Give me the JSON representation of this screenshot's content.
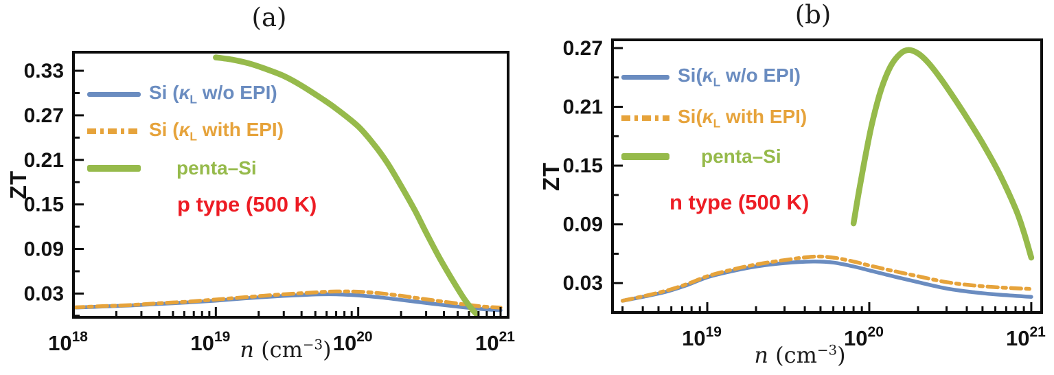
{
  "chart_data": [
    {
      "id": "a",
      "type": "line",
      "title": "(a)",
      "ylabel": "ZT",
      "xlabel": {
        "var": "n",
        "pre": " (cm",
        "sup": "−3",
        "post": ")"
      },
      "xscale": "log",
      "xlim_log10": [
        18,
        21.053
      ],
      "ylim": [
        -0.002,
        0.355
      ],
      "xticks_log10": [
        18,
        19,
        20,
        21
      ],
      "yticks": [
        0.03,
        0.09,
        0.15,
        0.21,
        0.27,
        0.33
      ],
      "ytick_minor": [
        0.0,
        0.06,
        0.12,
        0.18,
        0.24,
        0.3
      ],
      "grid": false,
      "legend_position": "upper-left-inside",
      "annotation": {
        "text": "p type (500 K)",
        "color": "#ed1c24"
      },
      "legend": [
        {
          "pre": "Si (",
          "kappa": "κ",
          "sub": "L",
          "post": " w/o EPI)",
          "color": "#6a8cc0",
          "line": "solid"
        },
        {
          "pre": "Si (",
          "kappa": "κ",
          "sub": "L",
          "post": " with EPI)",
          "color": "#e6a33b",
          "line": "dash-dot"
        },
        {
          "label": "penta–Si",
          "color": "#96ba4b",
          "line": "thick-solid"
        }
      ],
      "series": [
        {
          "name": "Si (kappa_L w/o EPI)",
          "color": "#6a8cc0",
          "style": "solid",
          "width": 5.5,
          "points": [
            [
              1e+18,
              0.011
            ],
            [
              1.6e+18,
              0.0125
            ],
            [
              2.5e+18,
              0.014
            ],
            [
              4e+18,
              0.016
            ],
            [
              6.3e+18,
              0.018
            ],
            [
              1e+19,
              0.0205
            ],
            [
              1.6e+19,
              0.0235
            ],
            [
              2.5e+19,
              0.026
            ],
            [
              4e+19,
              0.028
            ],
            [
              5.5e+19,
              0.029
            ],
            [
              7e+19,
              0.029
            ],
            [
              1e+20,
              0.0275
            ],
            [
              1.4e+20,
              0.025
            ],
            [
              2e+20,
              0.0215
            ],
            [
              2.8e+20,
              0.018
            ],
            [
              4e+20,
              0.0145
            ],
            [
              5.5e+20,
              0.0115
            ],
            [
              7.5e+20,
              0.009
            ],
            [
              1e+21,
              0.0075
            ]
          ]
        },
        {
          "name": "Si (kappa_L with EPI)",
          "color": "#e6a33b",
          "style": "dashdot",
          "width": 5.5,
          "points": [
            [
              1e+18,
              0.0113
            ],
            [
              1.6e+18,
              0.013
            ],
            [
              2.5e+18,
              0.0145
            ],
            [
              4e+18,
              0.017
            ],
            [
              6.3e+18,
              0.019
            ],
            [
              1e+19,
              0.022
            ],
            [
              1.6e+19,
              0.025
            ],
            [
              2.5e+19,
              0.028
            ],
            [
              4e+19,
              0.0305
            ],
            [
              5.5e+19,
              0.032
            ],
            [
              7e+19,
              0.0328
            ],
            [
              1e+20,
              0.0325
            ],
            [
              1.4e+20,
              0.0305
            ],
            [
              2e+20,
              0.027
            ],
            [
              2.8e+20,
              0.023
            ],
            [
              4e+20,
              0.019
            ],
            [
              5.5e+20,
              0.0155
            ],
            [
              7.5e+20,
              0.0125
            ],
            [
              1e+21,
              0.011
            ]
          ]
        },
        {
          "name": "penta-Si",
          "color": "#96ba4b",
          "style": "solid",
          "width": 8.5,
          "points": [
            [
              1e+19,
              0.348
            ],
            [
              1.3e+19,
              0.345
            ],
            [
              1.7e+19,
              0.34
            ],
            [
              2.2e+19,
              0.333
            ],
            [
              3e+19,
              0.323
            ],
            [
              4e+19,
              0.31
            ],
            [
              5.5e+19,
              0.293
            ],
            [
              7e+19,
              0.279
            ],
            [
              1e+20,
              0.255
            ],
            [
              1.3e+20,
              0.23
            ],
            [
              1.6e+20,
              0.206
            ],
            [
              2e+20,
              0.175
            ],
            [
              2.5e+20,
              0.142
            ],
            [
              3e+20,
              0.112
            ],
            [
              3.7e+20,
              0.079
            ],
            [
              4.5e+20,
              0.051
            ],
            [
              5.5e+20,
              0.024
            ],
            [
              6.3e+20,
              0.009
            ],
            [
              6.8e+20,
              0.002
            ]
          ]
        }
      ]
    },
    {
      "id": "b",
      "type": "line",
      "title": "(b)",
      "ylabel": "ZT",
      "xlabel": {
        "var": "n",
        "pre": " (cm",
        "sup": "−3",
        "post": ")"
      },
      "xscale": "log",
      "xlim_log10": [
        18.415,
        21.064
      ],
      "ylim": [
        0.0,
        0.2784
      ],
      "xticks_log10": [
        19,
        20,
        21
      ],
      "yticks": [
        0.03,
        0.09,
        0.15,
        0.21,
        0.27
      ],
      "ytick_minor": [
        0.06,
        0.12,
        0.18,
        0.24
      ],
      "grid": false,
      "legend_position": "upper-left-inside",
      "annotation": {
        "text": "n type (500 K)",
        "color": "#ed1c24"
      },
      "legend": [
        {
          "pre": "Si(",
          "kappa": "κ",
          "sub": "L",
          "post": " w/o EPI)",
          "color": "#6a8cc0",
          "line": "solid"
        },
        {
          "pre": "Si(",
          "kappa": "κ",
          "sub": "L",
          "post": " with EPI)",
          "color": "#e6a33b",
          "line": "dash-dot"
        },
        {
          "label": "penta–Si",
          "color": "#96ba4b",
          "line": "thick-solid"
        }
      ],
      "series": [
        {
          "name": "Si (kappa_L w/o EPI)",
          "color": "#6a8cc0",
          "style": "solid",
          "width": 5.5,
          "points": [
            [
              3e+18,
              0.012
            ],
            [
              4e+18,
              0.016
            ],
            [
              5.5e+18,
              0.021
            ],
            [
              7.5e+18,
              0.028
            ],
            [
              1e+19,
              0.036
            ],
            [
              1.4e+19,
              0.042
            ],
            [
              2e+19,
              0.047
            ],
            [
              3e+19,
              0.0505
            ],
            [
              4.5e+19,
              0.052
            ],
            [
              6e+19,
              0.051
            ],
            [
              8e+19,
              0.047
            ],
            [
              1e+20,
              0.043
            ],
            [
              1.4e+20,
              0.037
            ],
            [
              2e+20,
              0.031
            ],
            [
              3e+20,
              0.0245
            ],
            [
              4.5e+20,
              0.0205
            ],
            [
              6.5e+20,
              0.018
            ],
            [
              1e+21,
              0.016
            ]
          ]
        },
        {
          "name": "Si (kappa_L with EPI)",
          "color": "#e6a33b",
          "style": "dashdot",
          "width": 5.5,
          "points": [
            [
              3e+18,
              0.012
            ],
            [
              4e+18,
              0.0165
            ],
            [
              5.5e+18,
              0.022
            ],
            [
              7.5e+18,
              0.029
            ],
            [
              1e+19,
              0.037
            ],
            [
              1.4e+19,
              0.0435
            ],
            [
              2e+19,
              0.049
            ],
            [
              3e+19,
              0.0535
            ],
            [
              4.5e+19,
              0.057
            ],
            [
              6e+19,
              0.056
            ],
            [
              8e+19,
              0.052
            ],
            [
              1e+20,
              0.048
            ],
            [
              1.4e+20,
              0.0425
            ],
            [
              2e+20,
              0.037
            ],
            [
              3e+20,
              0.031
            ],
            [
              4.5e+20,
              0.0275
            ],
            [
              6.5e+20,
              0.0255
            ],
            [
              1e+21,
              0.024
            ]
          ]
        },
        {
          "name": "penta-Si",
          "color": "#96ba4b",
          "style": "solid",
          "width": 8.5,
          "points": [
            [
              8e+19,
              0.091
            ],
            [
              8.6e+19,
              0.122
            ],
            [
              9.4e+19,
              0.157
            ],
            [
              1.04e+20,
              0.193
            ],
            [
              1.18e+20,
              0.227
            ],
            [
              1.35e+20,
              0.251
            ],
            [
              1.55e+20,
              0.264
            ],
            [
              1.75e+20,
              0.268
            ],
            [
              2e+20,
              0.2645
            ],
            [
              2.3e+20,
              0.2555
            ],
            [
              2.7e+20,
              0.241
            ],
            [
              3.2e+20,
              0.2235
            ],
            [
              4e+20,
              0.199
            ],
            [
              5e+20,
              0.173
            ],
            [
              6.3e+20,
              0.143
            ],
            [
              8e+20,
              0.106
            ],
            [
              9e+20,
              0.082
            ],
            [
              1e+21,
              0.056
            ]
          ]
        }
      ]
    }
  ]
}
